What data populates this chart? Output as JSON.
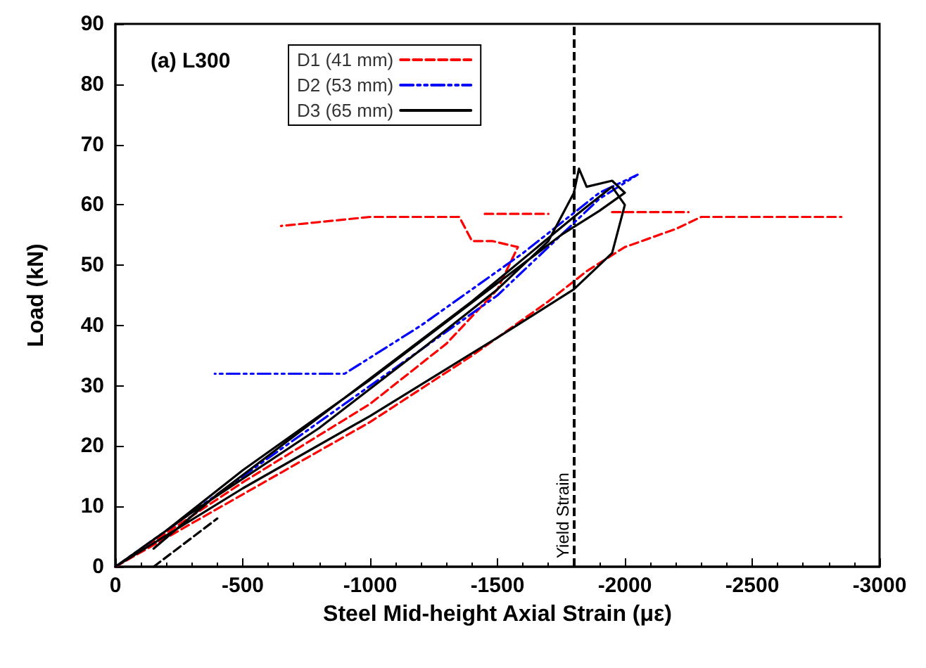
{
  "chart_data": {
    "type": "line",
    "xlabel": "Steel Mid-height Axial Strain (με)",
    "ylabel": "Load (kN)",
    "annotations": [
      "(a) L300"
    ],
    "xlim": [
      0,
      -3000
    ],
    "xticks": [
      0,
      -500,
      -1000,
      -1500,
      -2000,
      -2500,
      -3000
    ],
    "ylim": [
      0,
      90
    ],
    "yticks": [
      0,
      10,
      20,
      30,
      40,
      50,
      60,
      70,
      80,
      90
    ],
    "grid": false,
    "legend": "top left",
    "marker": "none",
    "ref_lines": [
      {
        "axis": "x",
        "value": -1800,
        "label": "Yield Strain",
        "color": "#000000",
        "line_style": "dashed"
      }
    ],
    "series": [
      {
        "name": "D1 (41 mm)",
        "color": "#ff0000",
        "line_style": "dashed",
        "x": [
          0,
          -500,
          -1000,
          -1400,
          -1700,
          -1850,
          -2000,
          -2200,
          -2300,
          -2600,
          -2850
        ],
        "values": [
          0,
          12,
          24,
          35,
          44,
          49,
          53,
          56,
          58,
          58,
          58
        ]
      },
      {
        "color": "#ff0000",
        "line_style": "dashed",
        "x": [
          0,
          -500,
          -1000,
          -1300,
          -1500,
          -1580,
          -1480,
          -1400,
          -1350,
          -1000,
          -650
        ],
        "values": [
          0,
          14,
          27,
          37,
          46,
          53,
          54,
          54,
          58,
          58,
          56.5
        ]
      },
      {
        "color": "#ff0000",
        "line_style": "dashed",
        "x": [
          -1450,
          -1700
        ],
        "values": [
          58.5,
          58.5
        ]
      },
      {
        "color": "#ff0000",
        "line_style": "dashed",
        "x": [
          -1950,
          -2250
        ],
        "values": [
          58.8,
          58.8
        ]
      },
      {
        "name": "D2 (53 mm)",
        "color": "#0000ff",
        "line_style": "dashdot",
        "x": [
          0,
          -500,
          -900,
          -1100,
          -1500,
          -1700,
          -1900,
          -2050,
          -1900,
          -1600,
          -1200,
          -900,
          -800,
          -390
        ],
        "values": [
          0,
          15,
          27,
          33,
          45,
          53,
          61,
          65,
          62,
          52,
          40,
          32,
          32,
          32
        ]
      },
      {
        "name": "D3 (65 mm)",
        "color": "#000000",
        "line_style": "solid",
        "x": [
          0,
          -300,
          -800,
          -1200,
          -1500,
          -1700,
          -1750,
          -1800,
          -1820,
          -1850,
          -1950,
          -2000,
          -1900,
          -1750,
          -1500,
          -1000,
          -500,
          -200,
          0,
          -500,
          -1000,
          -1500,
          -1800,
          -1950,
          -2000,
          -1950,
          -1800,
          -1400,
          -900,
          -400,
          -150
        ],
        "values": [
          0,
          9,
          23,
          36,
          46,
          54,
          58,
          62,
          66,
          63,
          64,
          62,
          59,
          55,
          47,
          31,
          16,
          6,
          0,
          13,
          25,
          38,
          46,
          52,
          60,
          63,
          58,
          44,
          28,
          12,
          3
        ]
      },
      {
        "color": "#000000",
        "line_style": "dashed",
        "x": [
          -150,
          -400
        ],
        "values": [
          0,
          8
        ]
      }
    ]
  }
}
